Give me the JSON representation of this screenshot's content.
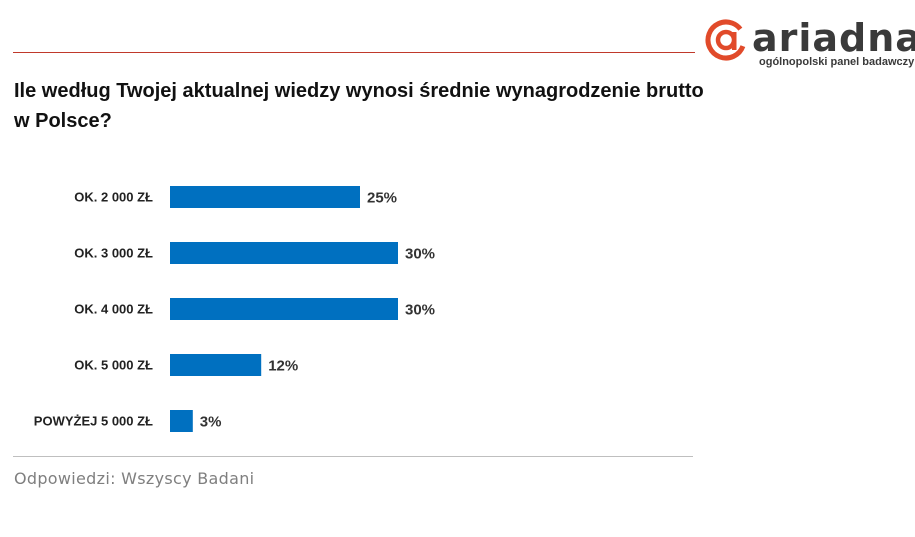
{
  "logo": {
    "wordmark": "ariadna",
    "tagline": "ogólnopolski panel badawczy",
    "brand_color": "#e14a2a"
  },
  "question": "Ile według Twojej aktualnej wiedzy wynosi średnie wynagrodzenie brutto w Polsce?",
  "footnote": "Odpowiedzi: Wszyscy Badani",
  "colors": {
    "bar": "#0070c0",
    "rule_top": "#c0392b",
    "rule_bottom": "#bfbfbf"
  },
  "chart_data": {
    "type": "bar",
    "orientation": "horizontal",
    "categories": [
      "OK. 2 000 ZŁ",
      "OK. 3 000 ZŁ",
      "OK. 4 000 ZŁ",
      "OK. 5 000 ZŁ",
      "POWYŻEJ 5 000 ZŁ"
    ],
    "values": [
      25,
      30,
      30,
      12,
      3
    ],
    "value_labels": [
      "25%",
      "30%",
      "30%",
      "12%",
      "3%"
    ],
    "unit": "%",
    "xlim": [
      0,
      100
    ],
    "grid": false,
    "legend": "none"
  }
}
